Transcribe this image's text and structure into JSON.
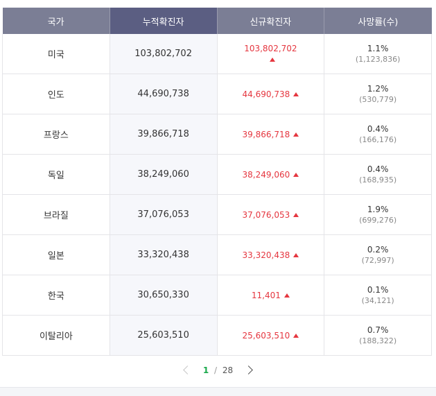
{
  "headers": {
    "country": "국가",
    "cumulative": "누적확진자",
    "new_cases": "신규확진자",
    "deaths": "사망률(수)"
  },
  "rows": [
    {
      "country": "미국",
      "cumulative": "103,802,702",
      "new_cases": "103,802,702",
      "death_rate": "1.1%",
      "death_count": "(1,123,836)"
    },
    {
      "country": "인도",
      "cumulative": "44,690,738",
      "new_cases": "44,690,738",
      "death_rate": "1.2%",
      "death_count": "(530,779)"
    },
    {
      "country": "프랑스",
      "cumulative": "39,866,718",
      "new_cases": "39,866,718",
      "death_rate": "0.4%",
      "death_count": "(166,176)"
    },
    {
      "country": "독일",
      "cumulative": "38,249,060",
      "new_cases": "38,249,060",
      "death_rate": "0.4%",
      "death_count": "(168,935)"
    },
    {
      "country": "브라질",
      "cumulative": "37,076,053",
      "new_cases": "37,076,053",
      "death_rate": "1.9%",
      "death_count": "(699,276)"
    },
    {
      "country": "일본",
      "cumulative": "33,320,438",
      "new_cases": "33,320,438",
      "death_rate": "0.2%",
      "death_count": "(72,997)"
    },
    {
      "country": "한국",
      "cumulative": "30,650,330",
      "new_cases": "11,401",
      "death_rate": "0.1%",
      "death_count": "(34,121)"
    },
    {
      "country": "이탈리아",
      "cumulative": "25,603,510",
      "new_cases": "25,603,510",
      "death_rate": "0.7%",
      "death_count": "(188,322)"
    }
  ],
  "pagination": {
    "current": "1",
    "separator": "/",
    "total": "28"
  },
  "colors": {
    "header": "#7b7e95",
    "header_active": "#5b5e82",
    "increase": "#e5363f",
    "current_page": "#1ba94c"
  },
  "icons": {
    "increase": "triangle-up-icon",
    "prev": "chevron-left-icon",
    "next": "chevron-right-icon"
  }
}
